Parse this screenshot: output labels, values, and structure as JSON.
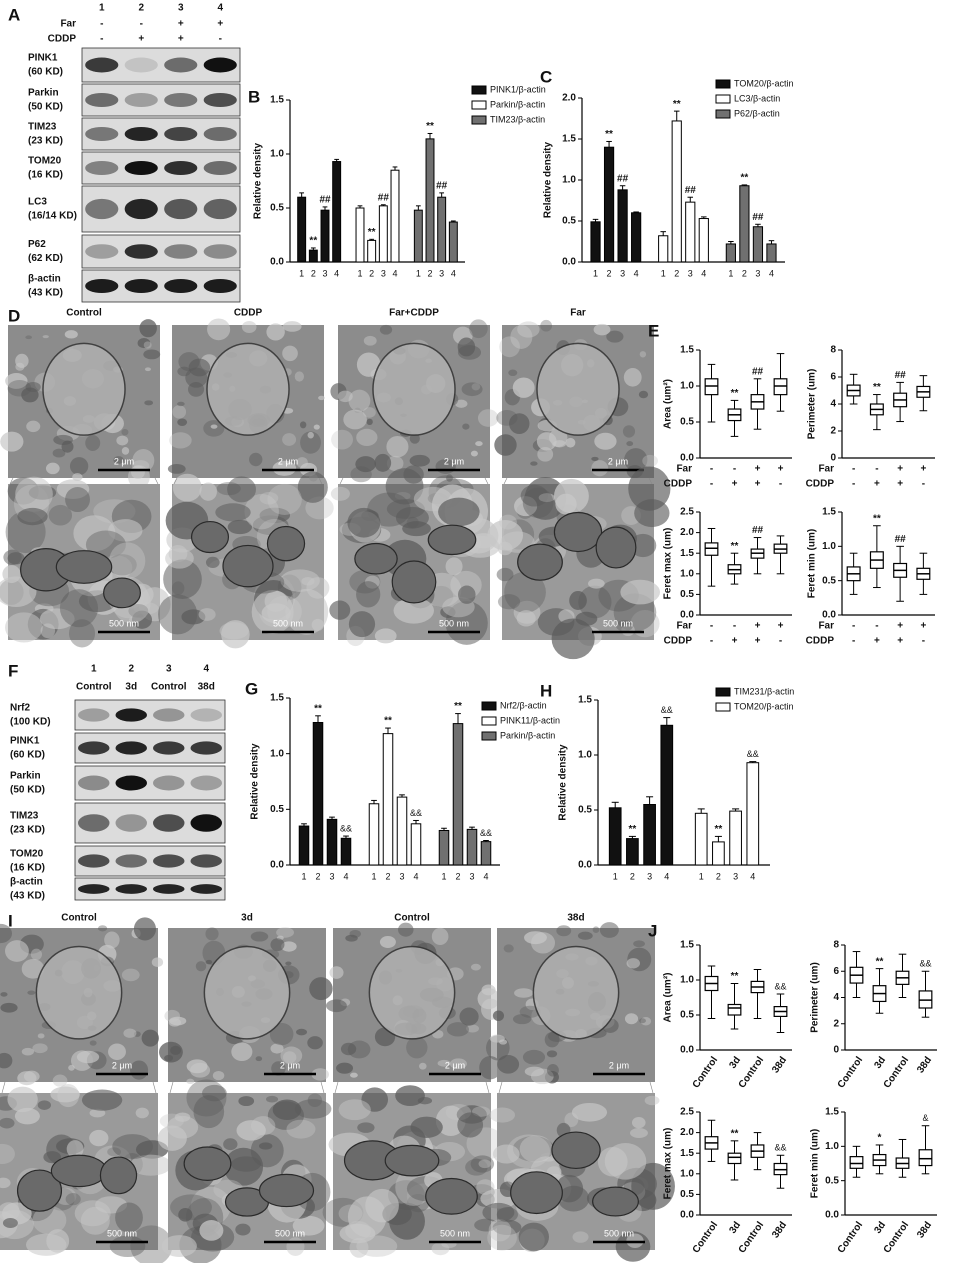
{
  "blot_a": {
    "letter": "A",
    "lanes": [
      "1",
      "2",
      "3",
      "4"
    ],
    "conditions": [
      {
        "name": "Far",
        "signs": [
          "-",
          "-",
          "+",
          "+"
        ]
      },
      {
        "name": "CDDP",
        "signs": [
          "-",
          "+",
          "+",
          "-"
        ]
      }
    ],
    "proteins": [
      [
        "PINK1",
        "(60 KD)"
      ],
      [
        "Parkin",
        "(50 KD)"
      ],
      [
        "TIM23",
        "(23 KD)"
      ],
      [
        "TOM20",
        "(16 KD)"
      ],
      [
        "LC3",
        "(16/14 KD)"
      ],
      [
        "P62",
        "(62 KD)"
      ],
      [
        "β-actin",
        "(43 KD)"
      ]
    ]
  },
  "micrographs_d": {
    "letter": "D",
    "titles": [
      "Control",
      "CDDP",
      "Far+CDDP",
      "Far"
    ],
    "scale_top": "2 μm",
    "scale_bottom": "500 nm"
  },
  "blot_f": {
    "letter": "F",
    "lanes": [
      "1",
      "2",
      "3",
      "4"
    ],
    "groups": [
      "Control",
      "3d",
      "Control",
      "38d"
    ],
    "proteins": [
      [
        "Nrf2",
        "(100 KD)"
      ],
      [
        "PINK1",
        "(60 KD)"
      ],
      [
        "Parkin",
        "(50 KD)"
      ],
      [
        "TIM23",
        "(23 KD)"
      ],
      [
        "TOM20",
        "(16 KD)"
      ],
      [
        "β-actin",
        "(43 KD)"
      ]
    ]
  },
  "micrographs_i": {
    "letter": "I",
    "titles": [
      "Control",
      "3d",
      "Control",
      "38d"
    ],
    "scale_top": "2 μm",
    "scale_bottom": "500 nm"
  },
  "chart_data": [
    {
      "type": "bar",
      "letter": "B",
      "y_label": "Relative density",
      "categories": [
        "1",
        "2",
        "3",
        "4"
      ],
      "ylim": [
        0,
        1.5
      ],
      "yticks": [
        {
          "value": 0,
          "label": "0.0"
        },
        0.5,
        {
          "value": 1,
          "label": "1.0"
        },
        1.5
      ],
      "series": [
        {
          "name": "PINK1/β-actin",
          "color": "#111111",
          "values": [
            0.6,
            0.11,
            0.48,
            0.93
          ],
          "errors": [
            0.04,
            0.02,
            0.03,
            0.02
          ],
          "annotations": [
            null,
            "**",
            "##",
            null
          ]
        },
        {
          "name": "Parkin/β-actin",
          "color": "#ffffff",
          "values": [
            0.5,
            0.2,
            0.52,
            0.85
          ],
          "errors": [
            0.02,
            0.01,
            0.01,
            0.03
          ],
          "annotations": [
            null,
            "**",
            "##",
            null
          ]
        },
        {
          "name": "TIM23/β-actin",
          "color": "#707070",
          "values": [
            0.48,
            1.14,
            0.6,
            0.37
          ],
          "errors": [
            0.04,
            0.05,
            0.04,
            0.01
          ],
          "annotations": [
            null,
            "**",
            "##",
            null
          ]
        }
      ]
    },
    {
      "type": "bar",
      "letter": "C",
      "y_label": "Relative density",
      "categories": [
        "1",
        "2",
        "3",
        "4"
      ],
      "ylim": [
        0,
        2
      ],
      "yticks": [
        {
          "value": 0,
          "label": "0.0"
        },
        0.5,
        {
          "value": 1,
          "label": "1.0"
        },
        1.5,
        {
          "value": 2,
          "label": "2.0"
        }
      ],
      "series": [
        {
          "name": "TOM20/β-actin",
          "color": "#111111",
          "values": [
            0.49,
            1.4,
            0.88,
            0.6
          ],
          "errors": [
            0.03,
            0.07,
            0.05,
            0.01
          ],
          "annotations": [
            null,
            "**",
            "##",
            null
          ]
        },
        {
          "name": "LC3/β-actin",
          "color": "#ffffff",
          "values": [
            0.32,
            1.72,
            0.73,
            0.53
          ],
          "errors": [
            0.05,
            0.12,
            0.06,
            0.02
          ],
          "annotations": [
            null,
            "**",
            "##",
            null
          ]
        },
        {
          "name": "P62/β-actin",
          "color": "#707070",
          "values": [
            0.22,
            0.93,
            0.43,
            0.22
          ],
          "errors": [
            0.03,
            0.01,
            0.03,
            0.04
          ],
          "annotations": [
            null,
            "**",
            "##",
            null
          ]
        }
      ]
    },
    {
      "type": "box",
      "letter": "E",
      "y_label": "Area (um²)",
      "ylim": [
        0,
        1.5
      ],
      "yticks": [
        {
          "value": 0,
          "label": "0.0"
        },
        0.5,
        {
          "value": 1,
          "label": "1.0"
        },
        1.5
      ],
      "conditions": [
        {
          "name": "Far",
          "signs": [
            "-",
            "-",
            "+",
            "+"
          ]
        },
        {
          "name": "CDDP",
          "signs": [
            "-",
            "+",
            "+",
            "-"
          ]
        }
      ],
      "boxes": [
        {
          "min": 0.5,
          "q1": 0.88,
          "median": 1.0,
          "q3": 1.1,
          "max": 1.3
        },
        {
          "min": 0.3,
          "q1": 0.52,
          "median": 0.6,
          "q3": 0.68,
          "max": 0.8
        },
        {
          "min": 0.4,
          "q1": 0.68,
          "median": 0.78,
          "q3": 0.88,
          "max": 1.1
        },
        {
          "min": 0.65,
          "q1": 0.88,
          "median": 1.0,
          "q3": 1.1,
          "max": 1.45
        }
      ],
      "annotations": [
        null,
        "**",
        "##",
        null
      ]
    },
    {
      "type": "box",
      "y_label": "Perimeter (um)",
      "ylim": [
        0,
        8
      ],
      "yticks": [
        0,
        2,
        4,
        6,
        8
      ],
      "conditions": [
        {
          "name": "Far",
          "signs": [
            "-",
            "-",
            "+",
            "+"
          ]
        },
        {
          "name": "CDDP",
          "signs": [
            "-",
            "+",
            "+",
            "-"
          ]
        }
      ],
      "boxes": [
        {
          "min": 4.0,
          "q1": 4.6,
          "median": 5.0,
          "q3": 5.4,
          "max": 6.2
        },
        {
          "min": 2.1,
          "q1": 3.2,
          "median": 3.6,
          "q3": 4.0,
          "max": 4.7
        },
        {
          "min": 2.7,
          "q1": 3.8,
          "median": 4.3,
          "q3": 4.8,
          "max": 5.6
        },
        {
          "min": 3.5,
          "q1": 4.5,
          "median": 4.9,
          "q3": 5.3,
          "max": 6.1
        }
      ],
      "annotations": [
        null,
        "**",
        "##",
        null
      ]
    },
    {
      "type": "box",
      "y_label": "Feret max (um)",
      "ylim": [
        0,
        2.5
      ],
      "yticks": [
        {
          "value": 0,
          "label": "0.0"
        },
        0.5,
        {
          "value": 1,
          "label": "1.0"
        },
        1.5,
        {
          "value": 2,
          "label": "2.0"
        },
        2.5
      ],
      "conditions": [
        {
          "name": "Far",
          "signs": [
            "-",
            "-",
            "+",
            "+"
          ]
        },
        {
          "name": "CDDP",
          "signs": [
            "-",
            "+",
            "+",
            "-"
          ]
        }
      ],
      "boxes": [
        {
          "min": 0.7,
          "q1": 1.45,
          "median": 1.62,
          "q3": 1.75,
          "max": 2.1
        },
        {
          "min": 0.75,
          "q1": 1.0,
          "median": 1.1,
          "q3": 1.22,
          "max": 1.5
        },
        {
          "min": 1.0,
          "q1": 1.38,
          "median": 1.5,
          "q3": 1.6,
          "max": 1.88
        },
        {
          "min": 1.0,
          "q1": 1.5,
          "median": 1.6,
          "q3": 1.72,
          "max": 1.92
        }
      ],
      "annotations": [
        null,
        "**",
        "##",
        null
      ]
    },
    {
      "type": "box",
      "y_label": "Feret min (um)",
      "ylim": [
        0,
        1.5
      ],
      "yticks": [
        {
          "value": 0,
          "label": "0.0"
        },
        0.5,
        {
          "value": 1,
          "label": "1.0"
        },
        1.5
      ],
      "conditions": [
        {
          "name": "Far",
          "signs": [
            "-",
            "-",
            "+",
            "+"
          ]
        },
        {
          "name": "CDDP",
          "signs": [
            "-",
            "+",
            "+",
            "-"
          ]
        }
      ],
      "boxes": [
        {
          "min": 0.3,
          "q1": 0.5,
          "median": 0.6,
          "q3": 0.7,
          "max": 0.9
        },
        {
          "min": 0.4,
          "q1": 0.68,
          "median": 0.8,
          "q3": 0.92,
          "max": 1.3
        },
        {
          "min": 0.2,
          "q1": 0.55,
          "median": 0.65,
          "q3": 0.75,
          "max": 1.0
        },
        {
          "min": 0.3,
          "q1": 0.52,
          "median": 0.6,
          "q3": 0.68,
          "max": 0.9
        }
      ],
      "annotations": [
        null,
        "**",
        "##",
        null
      ]
    },
    {
      "type": "bar",
      "letter": "G",
      "y_label": "Relative density",
      "categories": [
        "1",
        "2",
        "3",
        "4"
      ],
      "ylim": [
        0,
        1.5
      ],
      "yticks": [
        {
          "value": 0,
          "label": "0.0"
        },
        0.5,
        {
          "value": 1,
          "label": "1.0"
        },
        1.5
      ],
      "series": [
        {
          "name": "Nrf2/β-actin",
          "color": "#111111",
          "values": [
            0.35,
            1.28,
            0.41,
            0.24
          ],
          "errors": [
            0.02,
            0.06,
            0.02,
            0.02
          ],
          "annotations": [
            null,
            "**",
            null,
            "&&"
          ]
        },
        {
          "name": "PINK11/β-actin",
          "color": "#ffffff",
          "values": [
            0.55,
            1.18,
            0.61,
            0.37
          ],
          "errors": [
            0.03,
            0.05,
            0.02,
            0.03
          ],
          "annotations": [
            null,
            "**",
            null,
            "&&"
          ]
        },
        {
          "name": "Parkin/β-actin",
          "color": "#707070",
          "values": [
            0.31,
            1.27,
            0.32,
            0.21
          ],
          "errors": [
            0.02,
            0.09,
            0.02,
            0.01
          ],
          "annotations": [
            null,
            "**",
            null,
            "&&"
          ]
        }
      ]
    },
    {
      "type": "bar",
      "letter": "H",
      "y_label": "Relative density",
      "categories": [
        "1",
        "2",
        "3",
        "4"
      ],
      "ylim": [
        0,
        1.5
      ],
      "yticks": [
        {
          "value": 0,
          "label": "0.0"
        },
        0.5,
        {
          "value": 1,
          "label": "1.0"
        },
        1.5
      ],
      "series": [
        {
          "name": "TIM231/β-actin",
          "color": "#111111",
          "values": [
            0.52,
            0.24,
            0.55,
            1.27
          ],
          "errors": [
            0.05,
            0.02,
            0.07,
            0.07
          ],
          "annotations": [
            null,
            "**",
            null,
            "&&"
          ]
        },
        {
          "name": "TOM20/β-actin",
          "color": "#ffffff",
          "values": [
            0.47,
            0.21,
            0.49,
            0.93
          ],
          "errors": [
            0.04,
            0.05,
            0.02,
            0.01
          ],
          "annotations": [
            null,
            "**",
            null,
            "&&"
          ]
        }
      ]
    },
    {
      "type": "box",
      "letter": "J",
      "y_label": "Area (um²)",
      "ylim": [
        0,
        1.5
      ],
      "yticks": [
        {
          "value": 0,
          "label": "0.0"
        },
        0.5,
        {
          "value": 1,
          "label": "1.0"
        },
        1.5
      ],
      "categories": [
        "Control",
        "3d",
        "Control",
        "38d"
      ],
      "boxes": [
        {
          "min": 0.45,
          "q1": 0.85,
          "median": 0.95,
          "q3": 1.05,
          "max": 1.2
        },
        {
          "min": 0.3,
          "q1": 0.5,
          "median": 0.6,
          "q3": 0.65,
          "max": 0.95
        },
        {
          "min": 0.45,
          "q1": 0.82,
          "median": 0.9,
          "q3": 0.98,
          "max": 1.15
        },
        {
          "min": 0.25,
          "q1": 0.48,
          "median": 0.55,
          "q3": 0.62,
          "max": 0.8
        }
      ],
      "annotations": [
        null,
        "**",
        null,
        "&&"
      ]
    },
    {
      "type": "box",
      "y_label": "Perimeter (um)",
      "ylim": [
        0,
        8
      ],
      "yticks": [
        0,
        2,
        4,
        6,
        8
      ],
      "categories": [
        "Control",
        "3d",
        "Control",
        "38d"
      ],
      "boxes": [
        {
          "min": 4.0,
          "q1": 5.1,
          "median": 5.7,
          "q3": 6.3,
          "max": 7.5
        },
        {
          "min": 2.8,
          "q1": 3.7,
          "median": 4.3,
          "q3": 4.9,
          "max": 6.2
        },
        {
          "min": 4.0,
          "q1": 5.0,
          "median": 5.5,
          "q3": 6.0,
          "max": 7.3
        },
        {
          "min": 2.5,
          "q1": 3.2,
          "median": 3.8,
          "q3": 4.5,
          "max": 6.0
        }
      ],
      "annotations": [
        null,
        "**",
        null,
        "&&"
      ]
    },
    {
      "type": "box",
      "y_label": "Feret max (um)",
      "ylim": [
        0,
        2.5
      ],
      "yticks": [
        {
          "value": 0,
          "label": "0.0"
        },
        0.5,
        {
          "value": 1,
          "label": "1.0"
        },
        1.5,
        {
          "value": 2,
          "label": "2.0"
        },
        2.5
      ],
      "categories": [
        "Control",
        "3d",
        "Control",
        "38d"
      ],
      "boxes": [
        {
          "min": 1.3,
          "q1": 1.6,
          "median": 1.75,
          "q3": 1.9,
          "max": 2.3
        },
        {
          "min": 0.85,
          "q1": 1.25,
          "median": 1.4,
          "q3": 1.5,
          "max": 1.8
        },
        {
          "min": 1.1,
          "q1": 1.4,
          "median": 1.55,
          "q3": 1.7,
          "max": 2.0
        },
        {
          "min": 0.65,
          "q1": 0.98,
          "median": 1.1,
          "q3": 1.25,
          "max": 1.45
        }
      ],
      "annotations": [
        null,
        "**",
        null,
        "&&"
      ]
    },
    {
      "type": "box",
      "y_label": "Feret min (um)",
      "ylim": [
        0,
        1.5
      ],
      "yticks": [
        {
          "value": 0,
          "label": "0.0"
        },
        0.5,
        {
          "value": 1,
          "label": "1.0"
        },
        1.5
      ],
      "categories": [
        "Control",
        "3d",
        "Control",
        "38d"
      ],
      "boxes": [
        {
          "min": 0.55,
          "q1": 0.68,
          "median": 0.75,
          "q3": 0.85,
          "max": 1.0
        },
        {
          "min": 0.6,
          "q1": 0.72,
          "median": 0.8,
          "q3": 0.88,
          "max": 1.02
        },
        {
          "min": 0.55,
          "q1": 0.68,
          "median": 0.75,
          "q3": 0.83,
          "max": 1.1
        },
        {
          "min": 0.6,
          "q1": 0.72,
          "median": 0.82,
          "q3": 0.95,
          "max": 1.3
        }
      ],
      "annotations": [
        null,
        "*",
        null,
        "&"
      ]
    }
  ]
}
